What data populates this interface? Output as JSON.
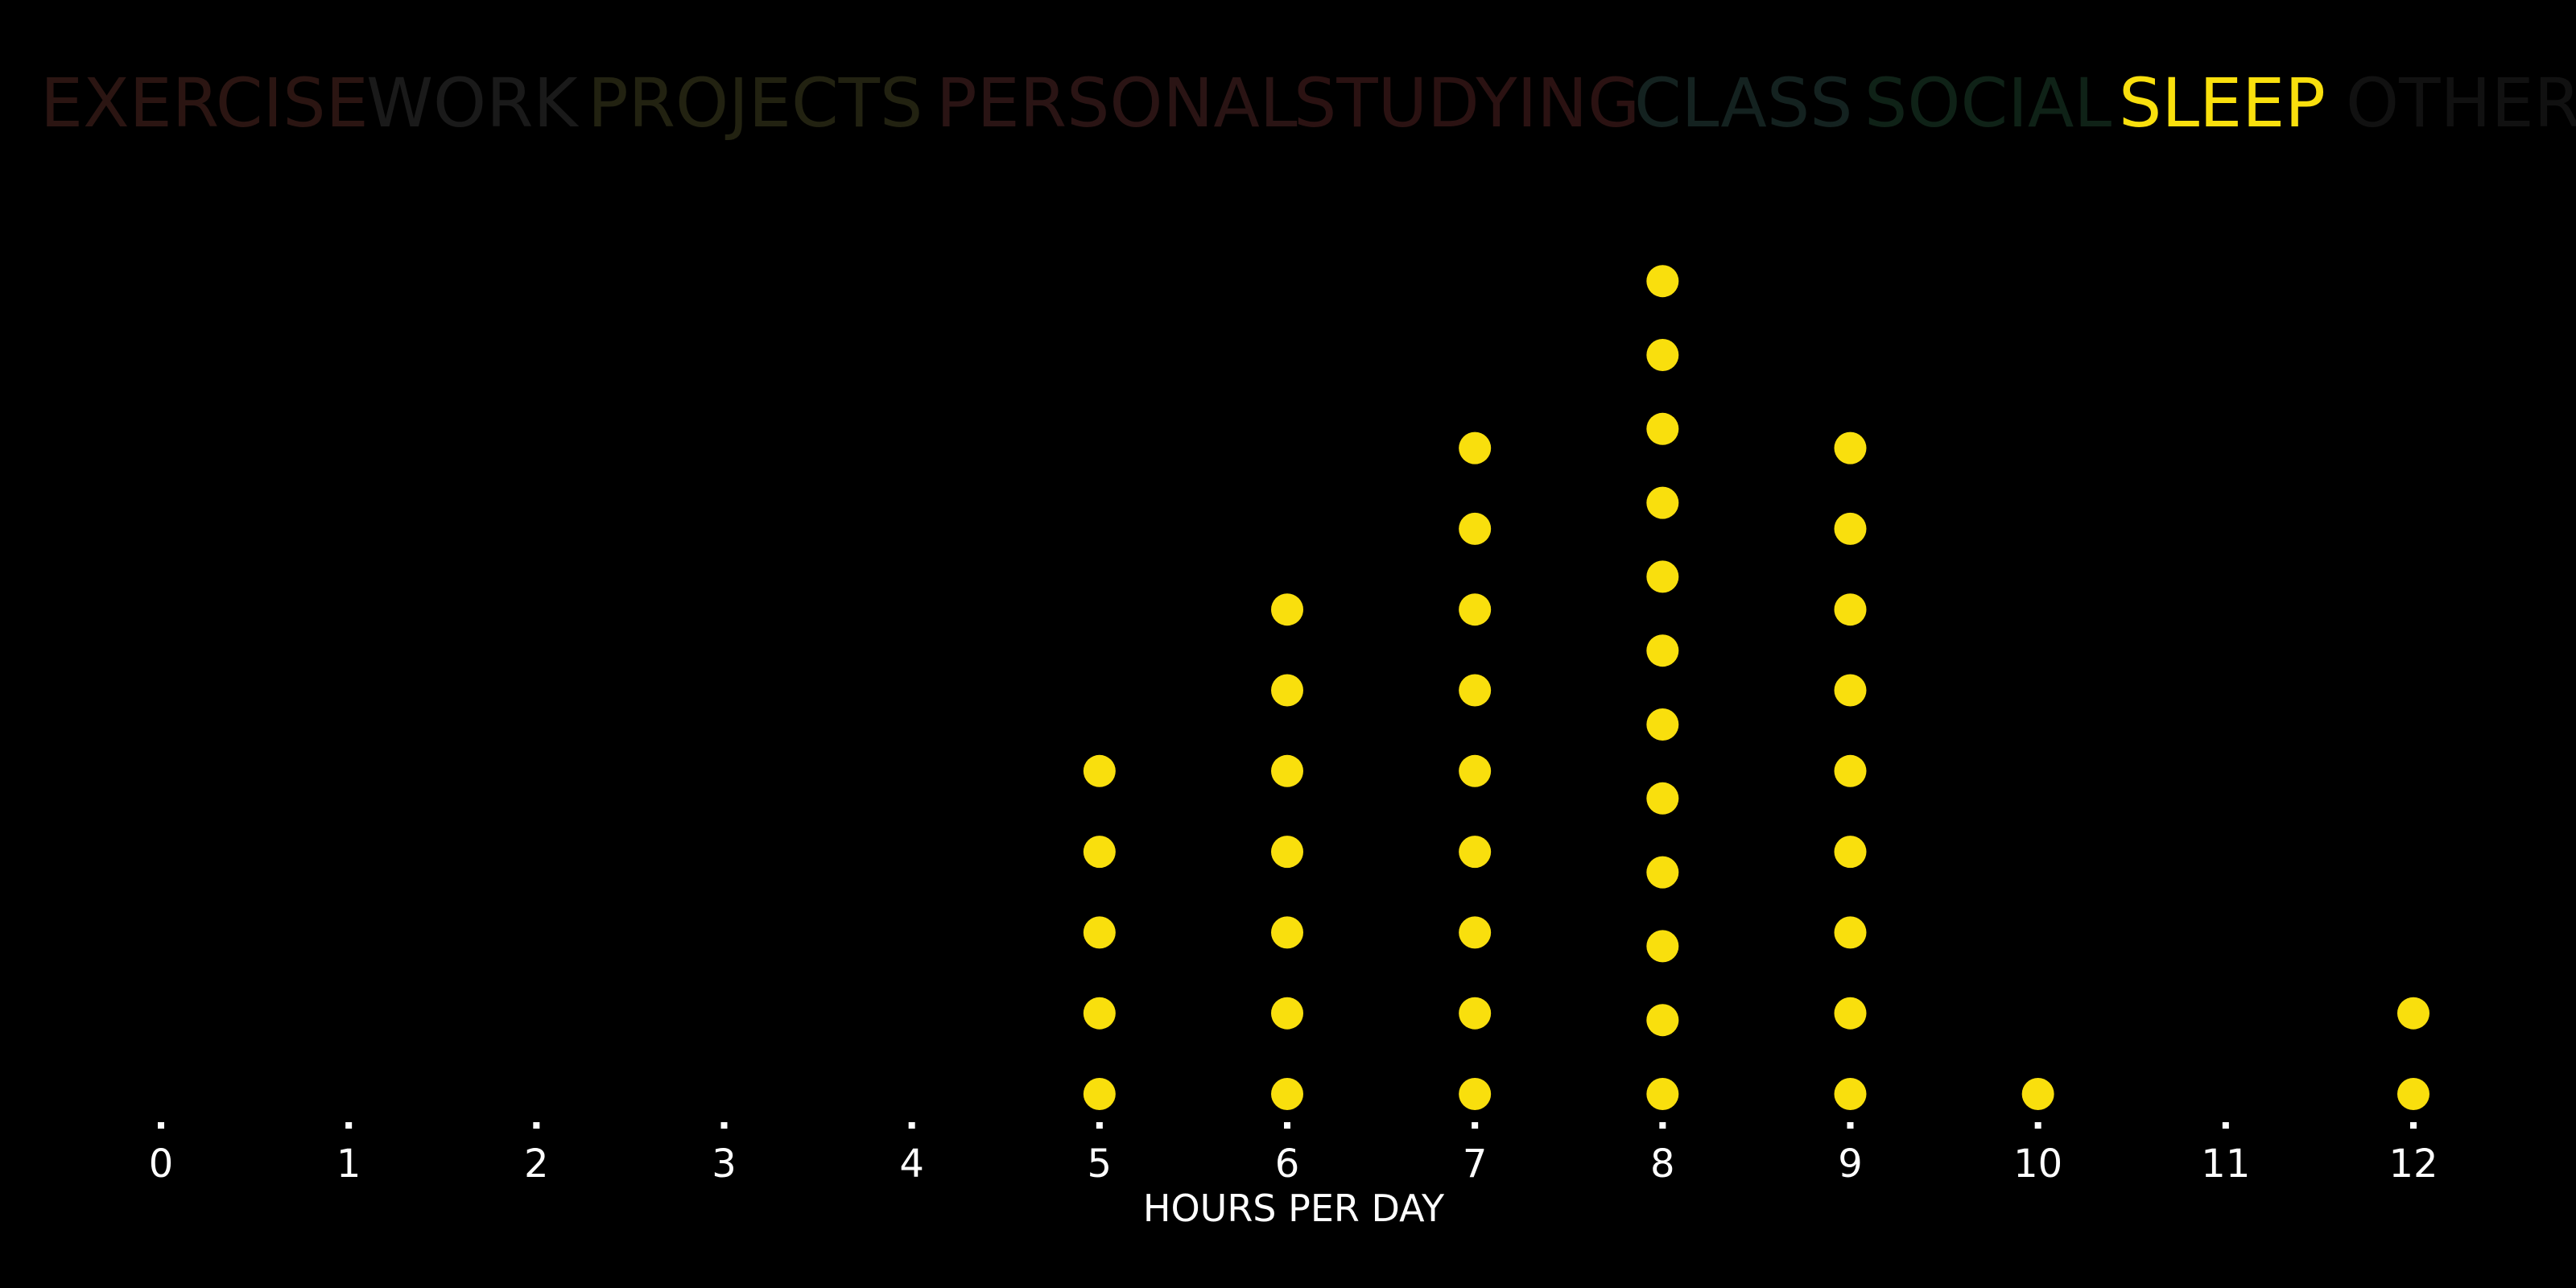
{
  "categories": [
    {
      "label": "EXERCISE",
      "color": "#2b1512",
      "active": false
    },
    {
      "label": "WORK",
      "color": "#1a1a1a",
      "active": false
    },
    {
      "label": "PROJECTS",
      "color": "#222211",
      "active": false
    },
    {
      "label": "PERSONAL",
      "color": "#2a1414",
      "active": false
    },
    {
      "label": "STUDYING",
      "color": "#2b1212",
      "active": false
    },
    {
      "label": "CLASS",
      "color": "#142220",
      "active": false
    },
    {
      "label": "SOCIAL",
      "color": "#0f2217",
      "active": false
    },
    {
      "label": "SLEEP",
      "color": "#f9df0d",
      "active": true
    },
    {
      "label": "OTHER",
      "color": "#111111",
      "active": false
    }
  ],
  "chart_data": {
    "type": "scatter",
    "subtype": "dot-plot",
    "x_ticks": [
      0,
      1,
      2,
      3,
      4,
      5,
      6,
      7,
      8,
      9,
      10,
      11,
      12
    ],
    "x_tick_labels": [
      "0",
      "1",
      "2",
      "3",
      "4",
      "5",
      "6",
      "7",
      "8",
      "9",
      "10",
      "11",
      "12"
    ],
    "xlim": [
      0,
      12
    ],
    "xlabel": "HOURS PER DAY",
    "series": [
      {
        "name": "SLEEP",
        "color": "#f9df0d",
        "x": [
          5,
          6,
          7,
          8,
          9,
          10,
          12
        ],
        "counts": [
          5,
          7,
          9,
          12,
          9,
          1,
          2
        ]
      }
    ],
    "grid": false,
    "legend": "top"
  }
}
